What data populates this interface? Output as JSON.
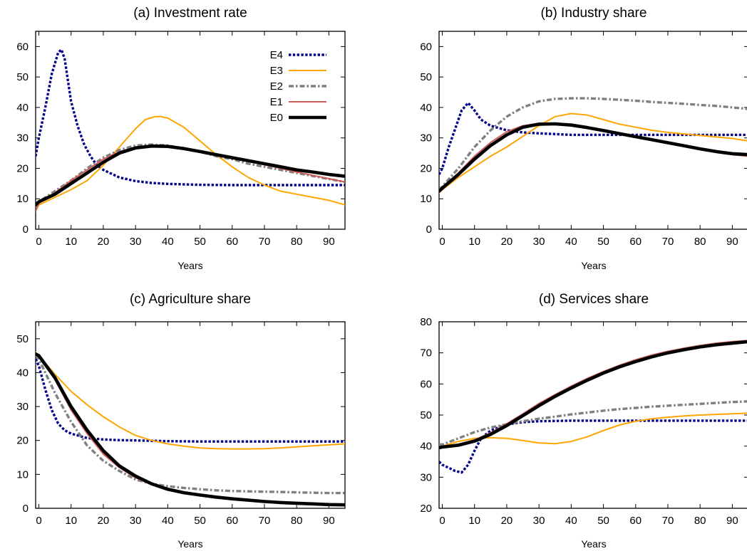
{
  "chart_data": [
    {
      "type": "line",
      "title": "(a) Investment rate",
      "xlabel": "Years",
      "ylabel": "",
      "xlim": [
        -1,
        95
      ],
      "ylim": [
        0,
        65
      ],
      "xticks": [
        0,
        10,
        20,
        30,
        40,
        50,
        60,
        70,
        80,
        90
      ],
      "yticks": [
        0,
        10,
        20,
        30,
        40,
        50,
        60
      ],
      "legend": "top-right",
      "series": [
        {
          "name": "E4",
          "color": "#00008b",
          "style": "dotted",
          "x": [
            -1,
            0,
            2,
            4,
            6,
            7,
            8,
            10,
            12,
            14,
            16,
            18,
            20,
            25,
            30,
            35,
            40,
            50,
            60,
            70,
            80,
            90,
            95
          ],
          "y": [
            24,
            30,
            40,
            51,
            58,
            59,
            56,
            42,
            34,
            28,
            24,
            21,
            19.5,
            17,
            15.8,
            15.2,
            14.9,
            14.6,
            14.5,
            14.5,
            14.5,
            14.5,
            14.5
          ]
        },
        {
          "name": "E3",
          "color": "#ffa500",
          "style": "solid",
          "x": [
            -1,
            0,
            5,
            10,
            15,
            20,
            25,
            30,
            33,
            36,
            38,
            40,
            45,
            50,
            55,
            60,
            65,
            70,
            75,
            80,
            85,
            90,
            95
          ],
          "y": [
            6,
            8,
            10.5,
            13,
            16,
            21,
            27,
            33,
            36,
            37,
            37,
            36.5,
            33.5,
            29,
            24.5,
            20.5,
            17,
            14.5,
            12.5,
            11.5,
            10.5,
            9.5,
            8
          ]
        },
        {
          "name": "E2",
          "color": "#808080",
          "style": "dashdot",
          "x": [
            -1,
            0,
            5,
            10,
            15,
            20,
            25,
            30,
            35,
            40,
            45,
            50,
            55,
            60,
            65,
            70,
            75,
            80,
            85,
            90,
            95
          ],
          "y": [
            7,
            9,
            12.5,
            16,
            20,
            23.5,
            26,
            27.5,
            27.8,
            27.5,
            26.5,
            25.5,
            24,
            23,
            21.5,
            20.5,
            19.5,
            18.5,
            17.5,
            16.5,
            15.5
          ]
        },
        {
          "name": "E1",
          "color": "#cd5c5c",
          "style": "solid",
          "x": [
            -1,
            0,
            5,
            10,
            15,
            20,
            25,
            30,
            35,
            40,
            45,
            50,
            55,
            60,
            65,
            70,
            75,
            80,
            85,
            90,
            95
          ],
          "y": [
            6,
            8.5,
            12,
            16,
            19.5,
            23,
            25.5,
            27,
            27.5,
            27.2,
            26.5,
            25.5,
            24.5,
            23.5,
            22.3,
            21.2,
            20,
            18.8,
            17.7,
            16.6,
            15.5
          ]
        },
        {
          "name": "E0",
          "color": "#000000",
          "style": "thick",
          "x": [
            -1,
            0,
            5,
            10,
            15,
            20,
            25,
            30,
            35,
            40,
            45,
            50,
            55,
            60,
            65,
            70,
            75,
            80,
            85,
            90,
            95
          ],
          "y": [
            8,
            9,
            11.5,
            15,
            18.5,
            22,
            25,
            26.7,
            27.3,
            27.2,
            26.5,
            25.5,
            24.5,
            23.5,
            22.5,
            21.5,
            20.5,
            19.5,
            18.8,
            18,
            17.4
          ]
        }
      ]
    },
    {
      "type": "line",
      "title": "(b) Industry share",
      "xlabel": "Years",
      "ylabel": "",
      "xlim": [
        -1,
        95
      ],
      "ylim": [
        0,
        65
      ],
      "xticks": [
        0,
        10,
        20,
        30,
        40,
        50,
        60,
        70,
        80,
        90
      ],
      "yticks": [
        0,
        10,
        20,
        30,
        40,
        50,
        60
      ],
      "series": [
        {
          "name": "E4",
          "color": "#00008b",
          "style": "dotted",
          "x": [
            -1,
            0,
            2,
            4,
            6,
            8,
            10,
            12,
            15,
            20,
            25,
            30,
            40,
            50,
            60,
            70,
            80,
            90,
            95
          ],
          "y": [
            18,
            20,
            27,
            33,
            39,
            41.5,
            39,
            36,
            34,
            32.5,
            31.8,
            31.5,
            31,
            31,
            31,
            31,
            31,
            31,
            31
          ]
        },
        {
          "name": "E3",
          "color": "#ffa500",
          "style": "solid",
          "x": [
            -1,
            0,
            5,
            10,
            15,
            20,
            25,
            30,
            35,
            40,
            45,
            50,
            55,
            60,
            65,
            70,
            75,
            80,
            85,
            90,
            95
          ],
          "y": [
            12,
            13,
            17,
            20.5,
            24,
            27,
            30.5,
            34,
            37,
            38,
            37.5,
            36,
            34.5,
            33.5,
            32.5,
            31.8,
            31.3,
            30.8,
            30.3,
            29.8,
            29
          ]
        },
        {
          "name": "E2",
          "color": "#808080",
          "style": "dashdot",
          "x": [
            -1,
            0,
            5,
            10,
            15,
            20,
            25,
            30,
            35,
            40,
            45,
            50,
            55,
            60,
            65,
            70,
            75,
            80,
            85,
            90,
            95
          ],
          "y": [
            13,
            14,
            20,
            27,
            32.5,
            37,
            40,
            42,
            42.8,
            43,
            43,
            42.8,
            42.5,
            42.2,
            41.8,
            41.5,
            41.2,
            40.8,
            40.5,
            40,
            39.5
          ]
        },
        {
          "name": "E1",
          "color": "#cd5c5c",
          "style": "solid",
          "x": [
            -1,
            0,
            5,
            10,
            15,
            20,
            25,
            30,
            35,
            40,
            45,
            50,
            55,
            60,
            65,
            70,
            75,
            80,
            85,
            90,
            95
          ],
          "y": [
            12,
            13,
            18.5,
            24,
            28.5,
            32,
            34,
            34.8,
            34.6,
            34,
            33.2,
            32.2,
            31.2,
            30.2,
            29.2,
            28.2,
            27.2,
            26.2,
            25.2,
            24.5,
            24
          ]
        },
        {
          "name": "E0",
          "color": "#000000",
          "style": "thick",
          "x": [
            -1,
            0,
            5,
            10,
            15,
            20,
            25,
            30,
            35,
            40,
            45,
            50,
            55,
            60,
            65,
            70,
            75,
            80,
            85,
            90,
            95
          ],
          "y": [
            12.5,
            13.5,
            18,
            23,
            27.5,
            31,
            33.5,
            34.5,
            34.6,
            34.2,
            33.4,
            32.4,
            31.4,
            30.4,
            29.4,
            28.4,
            27.4,
            26.4,
            25.5,
            24.8,
            24.5
          ]
        }
      ]
    },
    {
      "type": "line",
      "title": "(c) Agriculture share",
      "xlabel": "Years",
      "ylabel": "",
      "xlim": [
        -1,
        95
      ],
      "ylim": [
        0,
        55
      ],
      "xticks": [
        0,
        10,
        20,
        30,
        40,
        50,
        60,
        70,
        80,
        90
      ],
      "yticks": [
        0,
        10,
        20,
        30,
        40,
        50
      ],
      "series": [
        {
          "name": "E4",
          "color": "#00008b",
          "style": "dotted",
          "x": [
            -1,
            0,
            2,
            4,
            6,
            8,
            10,
            12,
            15,
            20,
            25,
            30,
            40,
            50,
            60,
            70,
            80,
            90,
            95
          ],
          "y": [
            44,
            42,
            35,
            29,
            25,
            23,
            22,
            21.5,
            20.7,
            20.3,
            20.1,
            20,
            19.8,
            19.7,
            19.7,
            19.7,
            19.7,
            19.7,
            19.7
          ]
        },
        {
          "name": "E3",
          "color": "#ffa500",
          "style": "solid",
          "x": [
            -1,
            0,
            5,
            10,
            15,
            20,
            25,
            30,
            35,
            40,
            45,
            50,
            55,
            60,
            65,
            70,
            75,
            80,
            85,
            90,
            95
          ],
          "y": [
            46,
            45,
            39.5,
            34.5,
            30.5,
            27,
            24,
            21.5,
            20,
            19,
            18.3,
            17.8,
            17.6,
            17.5,
            17.5,
            17.6,
            17.8,
            18.1,
            18.4,
            18.7,
            19
          ]
        },
        {
          "name": "E2",
          "color": "#808080",
          "style": "dashdot",
          "x": [
            -1,
            0,
            5,
            10,
            15,
            20,
            25,
            30,
            35,
            40,
            45,
            50,
            55,
            60,
            65,
            70,
            75,
            80,
            85,
            90,
            95
          ],
          "y": [
            45,
            44,
            34,
            25.5,
            18.5,
            14,
            11,
            8.5,
            7.2,
            6.5,
            6,
            5.6,
            5.3,
            5.1,
            5,
            4.9,
            4.8,
            4.7,
            4.6,
            4.5,
            4.5
          ]
        },
        {
          "name": "E1",
          "color": "#cd5c5c",
          "style": "solid",
          "x": [
            -1,
            0,
            5,
            10,
            15,
            20,
            25,
            30,
            35,
            40,
            45,
            50,
            55,
            60,
            65,
            70,
            75,
            80,
            85,
            90,
            95
          ],
          "y": [
            45.5,
            45,
            38,
            29,
            22,
            16,
            12,
            9,
            7,
            5.5,
            4.6,
            3.9,
            3.3,
            2.8,
            2.4,
            2,
            1.7,
            1.5,
            1.3,
            1.1,
            1
          ]
        },
        {
          "name": "E0",
          "color": "#000000",
          "style": "thick",
          "x": [
            -1,
            0,
            5,
            10,
            15,
            20,
            25,
            30,
            35,
            40,
            45,
            50,
            55,
            60,
            65,
            70,
            75,
            80,
            85,
            90,
            95
          ],
          "y": [
            45.5,
            45,
            38.5,
            30,
            23,
            17,
            12.5,
            9.5,
            7.2,
            5.6,
            4.6,
            3.9,
            3.3,
            2.8,
            2.4,
            2,
            1.7,
            1.5,
            1.3,
            1.1,
            1
          ]
        }
      ]
    },
    {
      "type": "line",
      "title": "(d) Services share",
      "xlabel": "Years",
      "ylabel": "",
      "xlim": [
        -1,
        95
      ],
      "ylim": [
        20,
        80
      ],
      "xticks": [
        0,
        10,
        20,
        30,
        40,
        50,
        60,
        70,
        80,
        90
      ],
      "yticks": [
        20,
        30,
        40,
        50,
        60,
        70,
        80
      ],
      "series": [
        {
          "name": "E4",
          "color": "#00008b",
          "style": "dotted",
          "x": [
            -1,
            0,
            2,
            4,
            6,
            8,
            10,
            12,
            15,
            20,
            25,
            30,
            40,
            50,
            60,
            70,
            80,
            90,
            95
          ],
          "y": [
            35,
            34,
            33,
            32,
            31.5,
            34,
            38.5,
            42.5,
            45,
            47,
            47.7,
            48,
            48.2,
            48.2,
            48.2,
            48.2,
            48.2,
            48.2,
            48.2
          ]
        },
        {
          "name": "E3",
          "color": "#ffa500",
          "style": "solid",
          "x": [
            -1,
            0,
            5,
            10,
            15,
            20,
            25,
            30,
            35,
            40,
            45,
            50,
            55,
            60,
            65,
            70,
            75,
            80,
            85,
            90,
            95
          ],
          "y": [
            40,
            40,
            41.5,
            42.5,
            42.7,
            42.5,
            41.8,
            41,
            40.8,
            41.5,
            43,
            45,
            46.8,
            48,
            48.8,
            49.3,
            49.7,
            50,
            50.2,
            50.4,
            50.6
          ]
        },
        {
          "name": "E2",
          "color": "#808080",
          "style": "dashdot",
          "x": [
            -1,
            0,
            5,
            10,
            15,
            20,
            25,
            30,
            35,
            40,
            45,
            50,
            55,
            60,
            65,
            70,
            75,
            80,
            85,
            90,
            95
          ],
          "y": [
            40.5,
            40.5,
            42.5,
            44.5,
            46,
            47,
            48,
            48.8,
            49.5,
            50.2,
            50.8,
            51.4,
            51.9,
            52.3,
            52.7,
            53,
            53.3,
            53.6,
            53.9,
            54.2,
            54.4
          ]
        },
        {
          "name": "E1",
          "color": "#cd5c5c",
          "style": "solid",
          "x": [
            -1,
            0,
            5,
            10,
            15,
            20,
            25,
            30,
            35,
            40,
            45,
            50,
            55,
            60,
            65,
            70,
            75,
            80,
            85,
            90,
            95
          ],
          "y": [
            39.8,
            40,
            40.6,
            42,
            44.3,
            47.2,
            50.4,
            53.7,
            56.6,
            59.3,
            61.8,
            64,
            66,
            67.8,
            69.3,
            70.5,
            71.5,
            72.4,
            73.1,
            73.6,
            74
          ]
        },
        {
          "name": "E0",
          "color": "#000000",
          "style": "thick",
          "x": [
            -1,
            0,
            5,
            10,
            15,
            20,
            25,
            30,
            35,
            40,
            45,
            50,
            55,
            60,
            65,
            70,
            75,
            80,
            85,
            90,
            95
          ],
          "y": [
            39.5,
            39.7,
            40.3,
            41.6,
            43.8,
            46.6,
            49.8,
            53,
            56,
            58.7,
            61.2,
            63.5,
            65.5,
            67.2,
            68.7,
            70,
            71,
            71.9,
            72.6,
            73.1,
            73.6
          ]
        }
      ]
    }
  ]
}
